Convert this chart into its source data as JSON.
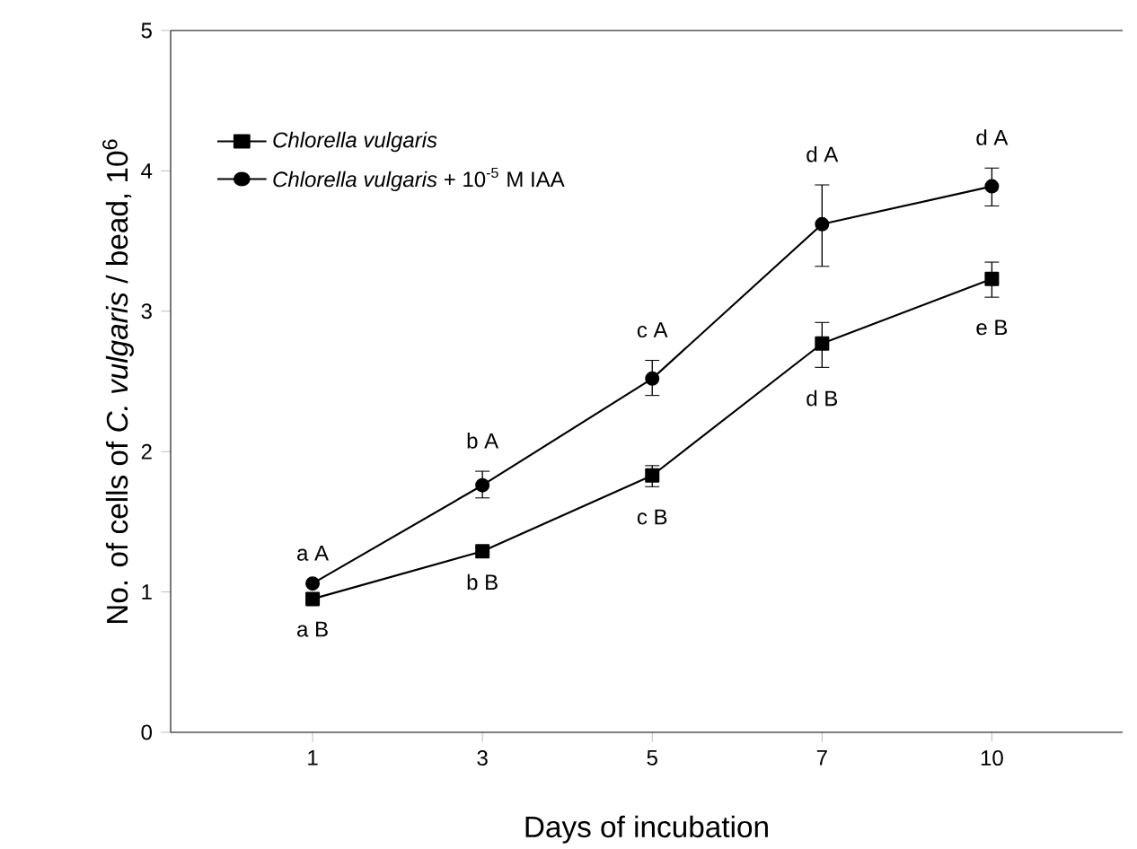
{
  "chart_data": {
    "type": "line",
    "xlabel": "Days of incubation",
    "ylabel": "No. of cells of *C. vulgaris* / bead, 10$^{6}$",
    "categories": [
      "1",
      "3",
      "5",
      "7",
      "10"
    ],
    "series": [
      {
        "name": "*Chlorella vulgaris*",
        "color": "#000000",
        "marker": "square",
        "values": [
          0.95,
          1.29,
          1.83,
          2.77,
          3.23
        ],
        "errors": [
          null,
          null,
          [
            1.75,
            1.9
          ],
          [
            2.6,
            2.92
          ],
          [
            3.1,
            3.35
          ]
        ]
      },
      {
        "name": "*Chlorella vulgaris* + 10$^{-5}$ M IAA",
        "color": "#000000",
        "marker": "circle",
        "values": [
          1.06,
          1.76,
          2.52,
          3.62,
          3.89
        ],
        "errors": [
          null,
          [
            1.67,
            1.86
          ],
          [
            2.4,
            2.65
          ],
          [
            3.32,
            3.9
          ],
          [
            3.75,
            4.02
          ]
        ]
      }
    ],
    "ylim": [
      0,
      5
    ],
    "yticks": [
      0,
      1,
      2,
      3,
      4,
      5
    ],
    "legend": "top left",
    "line_style": "solid",
    "grid": false,
    "annotations": [
      "a A",
      "a B",
      "b A",
      "b B",
      "c A",
      "c B",
      "d A",
      "d B",
      "d A",
      "e B"
    ]
  }
}
